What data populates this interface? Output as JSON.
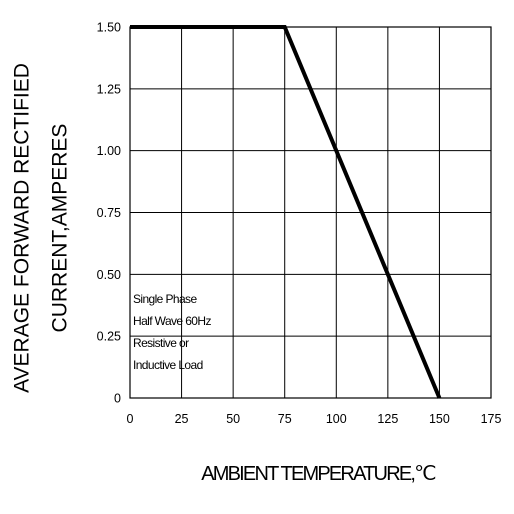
{
  "chart_data": {
    "type": "line",
    "title": "",
    "xlabel": "AMBIENT TEMPERATURE,℃",
    "ylabel_lines": [
      "AVERAGE FORWARD RECTIFIED",
      "CURRENT,AMPERES"
    ],
    "xlim": [
      0,
      175
    ],
    "ylim": [
      0,
      1.5
    ],
    "x_ticks": [
      0,
      25,
      50,
      75,
      100,
      125,
      150,
      175
    ],
    "x_tick_labels": [
      "0",
      "25",
      "50",
      "75",
      "100",
      "125",
      "150",
      "175"
    ],
    "y_ticks": [
      0,
      0.25,
      0.5,
      0.75,
      1.0,
      1.25,
      1.5
    ],
    "y_tick_labels": [
      "0",
      "0.25",
      "0.50",
      "0.75",
      "1.00",
      "1.25",
      "1.50"
    ],
    "grid": true,
    "line_color": "#000000",
    "series": [
      {
        "x": [
          0,
          75,
          150
        ],
        "y": [
          1.5,
          1.5,
          0
        ]
      }
    ],
    "annotation": [
      "Single Phase",
      "Half Wave 60Hz",
      "Resistive or",
      "Inductive Load"
    ]
  }
}
